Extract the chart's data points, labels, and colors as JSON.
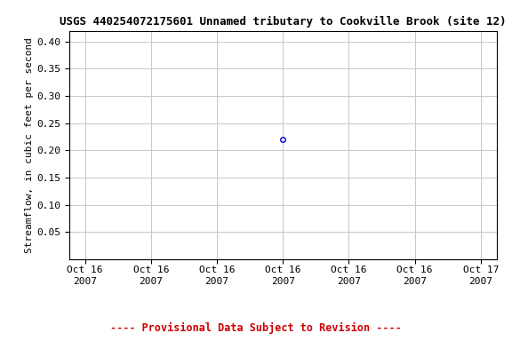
{
  "title": "USGS 440254072175601 Unnamed tributary to Cookville Brook (site 12)",
  "ylabel": "Streamflow, in cubic feet per second",
  "ylim": [
    0.0,
    0.42
  ],
  "yticks": [
    0.05,
    0.1,
    0.15,
    0.2,
    0.25,
    0.3,
    0.35,
    0.4
  ],
  "data_x": [
    0.5
  ],
  "data_y": [
    0.22
  ],
  "marker_color": "#0000cc",
  "marker_size": 4,
  "x_tick_labels": [
    "Oct 16\n2007",
    "Oct 16\n2007",
    "Oct 16\n2007",
    "Oct 16\n2007",
    "Oct 16\n2007",
    "Oct 16\n2007",
    "Oct 17\n2007"
  ],
  "x_tick_positions": [
    0.0,
    0.1667,
    0.3333,
    0.5,
    0.6667,
    0.8333,
    1.0
  ],
  "xlim": [
    -0.04,
    1.04
  ],
  "footer_text": "---- Provisional Data Subject to Revision ----",
  "footer_color": "#cc0000",
  "bg_color": "#ffffff",
  "grid_color": "#c8c8c8",
  "font_family": "monospace",
  "title_fontsize": 9,
  "axis_label_fontsize": 8,
  "tick_fontsize": 8,
  "footer_fontsize": 8.5
}
